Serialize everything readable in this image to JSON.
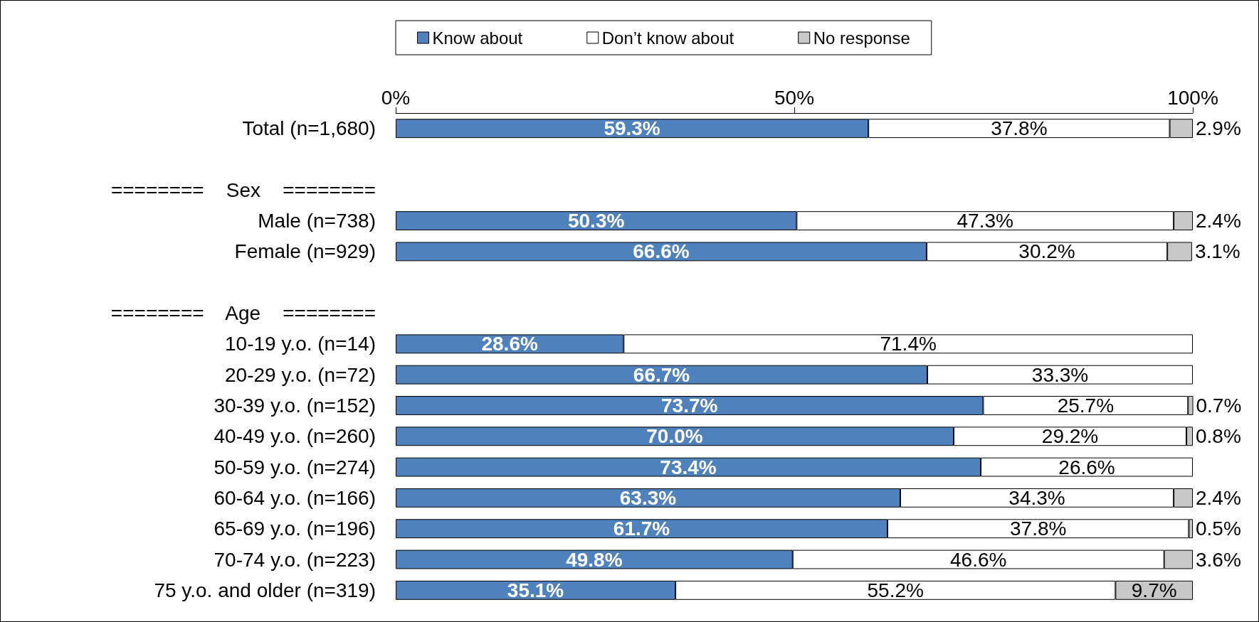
{
  "chart_data": {
    "type": "bar",
    "orientation": "horizontal",
    "stacked": true,
    "categories": [
      "Total (n=1,680)",
      null,
      "========    Sex    ========",
      "Male (n=738)",
      "Female (n=929)",
      null,
      "========    Age    ========",
      "10-19 y.o. (n=14)",
      "20-29 y.o. (n=72)",
      "30-39 y.o. (n=152)",
      "40-49 y.o. (n=260)",
      "50-59 y.o. (n=274)",
      "60-64 y.o. (n=166)",
      "65-69 y.o. (n=196)",
      "70-74 y.o. (n=223)",
      "75 y.o. and older (n=319)"
    ],
    "series": [
      {
        "name": "Know about",
        "color": "#4f81bd",
        "values": [
          59.3,
          null,
          null,
          50.3,
          66.6,
          null,
          null,
          28.6,
          66.7,
          73.7,
          70.0,
          73.4,
          63.3,
          61.7,
          49.8,
          35.1
        ],
        "value_labels": [
          "59.3%",
          null,
          null,
          "50.3%",
          "66.6%",
          null,
          null,
          "28.6%",
          "66.7%",
          "73.7%",
          "70.0%",
          "73.4%",
          "63.3%",
          "61.7%",
          "49.8%",
          "35.1%"
        ]
      },
      {
        "name": "Don’t know about",
        "color": "#ffffff",
        "values": [
          37.8,
          null,
          null,
          47.3,
          30.2,
          null,
          null,
          71.4,
          33.3,
          25.7,
          29.2,
          26.6,
          34.3,
          37.8,
          46.6,
          55.2
        ],
        "value_labels": [
          "37.8%",
          null,
          null,
          "47.3%",
          "30.2%",
          null,
          null,
          "71.4%",
          "33.3%",
          "25.7%",
          "29.2%",
          "26.6%",
          "34.3%",
          "37.8%",
          "46.6%",
          "55.2%"
        ]
      },
      {
        "name": "No response",
        "color": "#c8c8c8",
        "values": [
          2.9,
          null,
          null,
          2.4,
          3.1,
          null,
          null,
          null,
          null,
          0.7,
          0.8,
          null,
          2.4,
          0.5,
          3.6,
          9.7
        ],
        "value_labels": [
          "2.9%",
          null,
          null,
          "2.4%",
          "3.1%",
          null,
          null,
          null,
          null,
          "0.7%",
          "0.8%",
          null,
          "2.4%",
          "0.5%",
          "3.6%",
          "9.7%"
        ]
      }
    ],
    "xlim": [
      0,
      100
    ],
    "xticks": [
      {
        "value": 0,
        "label": "0%"
      },
      {
        "value": 50,
        "label": "50%"
      },
      {
        "value": 100,
        "label": "100%"
      }
    ],
    "legend": "top",
    "grid": false
  }
}
